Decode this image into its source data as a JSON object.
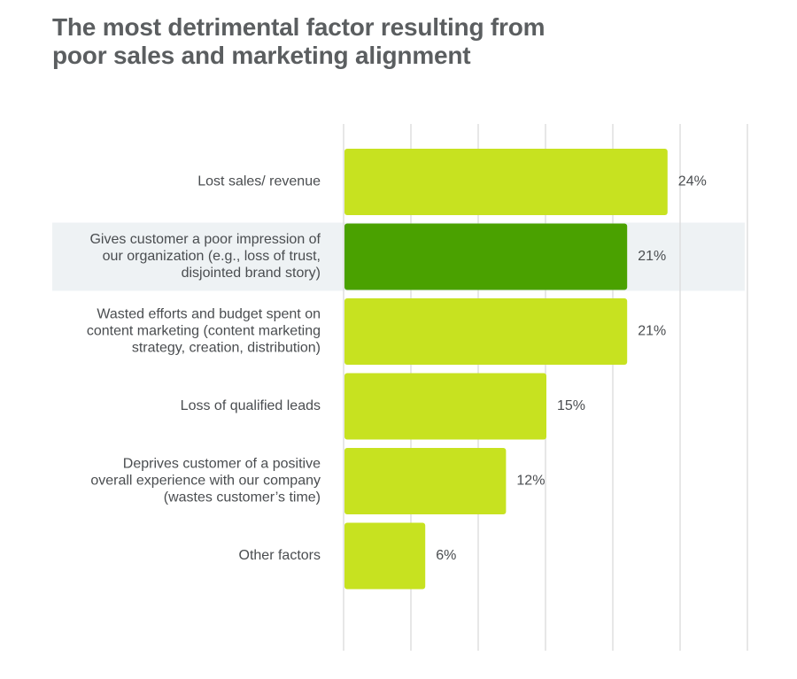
{
  "title": {
    "line1": "The most detrimental factor resulting from",
    "line2": "poor sales and marketing alignment"
  },
  "colors": {
    "bar": "#c7e220",
    "bar_highlight": "#4aa100",
    "highlight_band": "#eef2f4",
    "grid": "#dddddd",
    "text": "#4a4d50",
    "title": "#5b5e60"
  },
  "chart_data": {
    "type": "bar",
    "orientation": "horizontal",
    "title": "The most detrimental factor resulting from poor sales and marketing alignment",
    "categories": [
      [
        "Lost sales/ revenue"
      ],
      [
        "Gives customer a poor impression of",
        "our organization (e.g., loss of trust,",
        "disjointed brand story)"
      ],
      [
        "Wasted efforts and budget spent on",
        "content marketing (content marketing",
        "strategy, creation, distribution)"
      ],
      [
        "Loss of qualified leads"
      ],
      [
        "Deprives customer of a positive",
        "overall experience with our company",
        "(wastes customer’s time)"
      ],
      [
        "Other factors"
      ]
    ],
    "values": [
      24,
      21,
      21,
      15,
      12,
      6
    ],
    "value_labels": [
      "24%",
      "21%",
      "21%",
      "15%",
      "12%",
      "6%"
    ],
    "highlight_index": 1,
    "xlim": [
      0,
      30
    ],
    "grid_step": 5,
    "grid": true,
    "xlabel": "",
    "ylabel": ""
  }
}
